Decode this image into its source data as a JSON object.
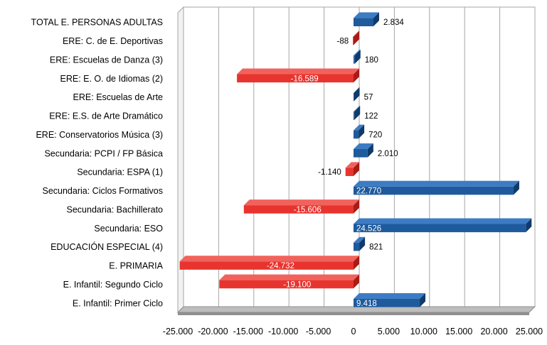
{
  "chart_data": {
    "type": "bar",
    "orientation": "horizontal",
    "style": "3d",
    "categories": [
      "TOTAL E. PERSONAS ADULTAS",
      "ERE: C. de E. Deportivas",
      "ERE: Escuelas de Danza (3)",
      "ERE: E. O. de Idiomas (2)",
      "ERE: Escuelas de Arte",
      "ERE: E.S. de Arte Dramático",
      "ERE: Conservatorios Música (3)",
      "Secundaria: PCPI / FP Básica",
      "Secundaria: ESPA (1)",
      "Secundaria: Ciclos Formativos",
      "Secundaria: Bachillerato",
      "Secundaria: ESO",
      "EDUCACIÓN ESPECIAL (4)",
      "E. PRIMARIA",
      "E. Infantil: Segundo Ciclo",
      "E. Infantil: Primer Ciclo"
    ],
    "values": [
      2834,
      -88,
      180,
      -16589,
      57,
      122,
      720,
      2010,
      -1140,
      22770,
      -15606,
      24526,
      821,
      -24732,
      -19100,
      9418
    ],
    "data_labels": [
      "2.834",
      "-88",
      "180",
      "-16.589",
      "57",
      "122",
      "720",
      "2.010",
      "-1.140",
      "22.770",
      "-15.606",
      "24.526",
      "821",
      "-24.732",
      "-19.100",
      "9.418"
    ],
    "xlim": [
      -25000,
      25000
    ],
    "x_ticks": [
      -25000,
      -20000,
      -15000,
      -10000,
      -5000,
      0,
      5000,
      10000,
      15000,
      20000,
      25000
    ],
    "x_tick_labels": [
      "-25.000",
      "-20.000",
      "-15.000",
      "-10.000",
      "-5.000",
      "0",
      "5.000",
      "10.000",
      "15.000",
      "20.000",
      "25.000"
    ],
    "grid": true,
    "title": "",
    "xlabel": "",
    "ylabel": "",
    "colors": {
      "positive": "#1f5a9c",
      "positive_light": "#3d7cc4",
      "positive_dark": "#0f3a6b",
      "negative": "#e8342e",
      "negative_light": "#f2625c",
      "negative_dark": "#a81b16",
      "wall": "#ffffff",
      "wall_border": "#a6a6a6",
      "floor": "#bdbdbd",
      "floor_dark": "#8f8f8f",
      "grid": "#a6a6a6",
      "text": "#000000",
      "inner_label": "#ffffff"
    }
  }
}
